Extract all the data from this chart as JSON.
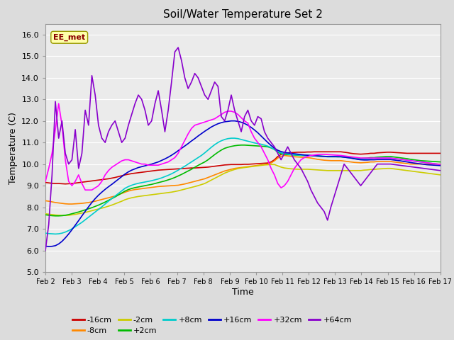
{
  "title": "Soil/Water Temperature Set 2",
  "xlabel": "Time",
  "ylabel": "Temperature (C)",
  "ylim": [
    5.0,
    16.5
  ],
  "yticks": [
    5.0,
    6.0,
    7.0,
    8.0,
    9.0,
    10.0,
    11.0,
    12.0,
    13.0,
    14.0,
    15.0,
    16.0
  ],
  "bg_color": "#dcdcdc",
  "plot_bg": "#ebebeb",
  "watermark": "EE_met",
  "series_order": [
    "-16cm",
    "-8cm",
    "-2cm",
    "+2cm",
    "+8cm",
    "+16cm",
    "+32cm",
    "+64cm"
  ],
  "series": {
    "-16cm": {
      "color": "#cc0000",
      "data": [
        9.15,
        9.13,
        9.11,
        9.1,
        9.1,
        9.09,
        9.08,
        9.09,
        9.1,
        9.12,
        9.14,
        9.16,
        9.18,
        9.2,
        9.22,
        9.24,
        9.26,
        9.28,
        9.3,
        9.32,
        9.35,
        9.38,
        9.42,
        9.46,
        9.5,
        9.53,
        9.56,
        9.58,
        9.6,
        9.62,
        9.64,
        9.66,
        9.68,
        9.7,
        9.72,
        9.73,
        9.74,
        9.75,
        9.76,
        9.77,
        9.78,
        9.79,
        9.8,
        9.81,
        9.82,
        9.82,
        9.83,
        9.84,
        9.85,
        9.86,
        9.88,
        9.9,
        9.92,
        9.94,
        9.96,
        9.97,
        9.98,
        9.98,
        9.98,
        9.98,
        9.99,
        9.99,
        10.0,
        10.01,
        10.02,
        10.03,
        10.04,
        10.05,
        10.1,
        10.2,
        10.35,
        10.45,
        10.5,
        10.52,
        10.53,
        10.54,
        10.55,
        10.55,
        10.55,
        10.56,
        10.56,
        10.57,
        10.57,
        10.57,
        10.57,
        10.57,
        10.57,
        10.57,
        10.57,
        10.57,
        10.55,
        10.53,
        10.5,
        10.48,
        10.47,
        10.46,
        10.47,
        10.48,
        10.5,
        10.5,
        10.52,
        10.53,
        10.54,
        10.55,
        10.55,
        10.54,
        10.53,
        10.52,
        10.51,
        10.5,
        10.5,
        10.5,
        10.5,
        10.5,
        10.5,
        10.5,
        10.5,
        10.5,
        10.5,
        10.5
      ]
    },
    "-8cm": {
      "color": "#ff8800",
      "data": [
        8.3,
        8.28,
        8.25,
        8.22,
        8.2,
        8.18,
        8.16,
        8.15,
        8.15,
        8.16,
        8.17,
        8.18,
        8.2,
        8.22,
        8.25,
        8.28,
        8.32,
        8.36,
        8.4,
        8.44,
        8.48,
        8.52,
        8.58,
        8.64,
        8.7,
        8.75,
        8.79,
        8.82,
        8.84,
        8.86,
        8.88,
        8.9,
        8.92,
        8.94,
        8.96,
        8.97,
        8.98,
        8.99,
        9.0,
        9.01,
        9.02,
        9.05,
        9.08,
        9.12,
        9.16,
        9.2,
        9.24,
        9.28,
        9.32,
        9.38,
        9.44,
        9.5,
        9.56,
        9.62,
        9.68,
        9.72,
        9.76,
        9.8,
        9.82,
        9.84,
        9.86,
        9.88,
        9.9,
        9.92,
        9.94,
        9.96,
        9.98,
        10.0,
        10.05,
        10.15,
        10.28,
        10.36,
        10.4,
        10.38,
        10.36,
        10.34,
        10.33,
        10.32,
        10.31,
        10.3,
        10.28,
        10.25,
        10.22,
        10.2,
        10.18,
        10.17,
        10.16,
        10.16,
        10.16,
        10.16,
        10.14,
        10.12,
        10.1,
        10.08,
        10.07,
        10.06,
        10.07,
        10.08,
        10.1,
        10.1,
        10.12,
        10.12,
        10.12,
        10.12,
        10.12,
        10.1,
        10.08,
        10.06,
        10.04,
        10.02,
        10.0,
        10.0,
        10.0,
        10.0,
        10.0,
        10.0,
        10.0,
        10.0,
        10.0,
        10.0
      ]
    },
    "-2cm": {
      "color": "#cccc00",
      "data": [
        7.7,
        7.68,
        7.66,
        7.64,
        7.63,
        7.62,
        7.62,
        7.63,
        7.65,
        7.67,
        7.7,
        7.73,
        7.76,
        7.8,
        7.84,
        7.88,
        7.92,
        7.96,
        8.0,
        8.05,
        8.1,
        8.16,
        8.22,
        8.28,
        8.35,
        8.4,
        8.44,
        8.47,
        8.5,
        8.52,
        8.54,
        8.56,
        8.58,
        8.6,
        8.62,
        8.64,
        8.66,
        8.68,
        8.7,
        8.73,
        8.76,
        8.8,
        8.84,
        8.88,
        8.92,
        8.96,
        9.0,
        9.05,
        9.1,
        9.18,
        9.26,
        9.34,
        9.42,
        9.5,
        9.58,
        9.64,
        9.7,
        9.75,
        9.79,
        9.82,
        9.84,
        9.86,
        9.88,
        9.9,
        9.92,
        9.94,
        9.96,
        9.97,
        9.98,
        9.98,
        9.92,
        9.86,
        9.82,
        9.8,
        9.78,
        9.77,
        9.76,
        9.76,
        9.76,
        9.76,
        9.75,
        9.74,
        9.73,
        9.72,
        9.71,
        9.7,
        9.7,
        9.7,
        9.7,
        9.7,
        9.7,
        9.7,
        9.7,
        9.7,
        9.7,
        9.7,
        9.72,
        9.73,
        9.75,
        9.75,
        9.77,
        9.78,
        9.79,
        9.8,
        9.8,
        9.78,
        9.76,
        9.74,
        9.72,
        9.7,
        9.68,
        9.66,
        9.64,
        9.62,
        9.6,
        9.58,
        9.56,
        9.54,
        9.52,
        9.5
      ]
    },
    "+2cm": {
      "color": "#00bb00",
      "data": [
        7.65,
        7.63,
        7.61,
        7.6,
        7.6,
        7.61,
        7.63,
        7.66,
        7.7,
        7.74,
        7.78,
        7.83,
        7.88,
        7.93,
        7.98,
        8.04,
        8.1,
        8.17,
        8.24,
        8.32,
        8.4,
        8.48,
        8.57,
        8.66,
        8.75,
        8.82,
        8.87,
        8.91,
        8.94,
        8.97,
        9.0,
        9.03,
        9.06,
        9.1,
        9.14,
        9.18,
        9.22,
        9.27,
        9.32,
        9.38,
        9.45,
        9.52,
        9.6,
        9.68,
        9.76,
        9.85,
        9.94,
        10.02,
        10.1,
        10.2,
        10.32,
        10.44,
        10.55,
        10.65,
        10.73,
        10.78,
        10.82,
        10.85,
        10.87,
        10.88,
        10.88,
        10.87,
        10.86,
        10.85,
        10.84,
        10.83,
        10.82,
        10.8,
        10.75,
        10.68,
        10.55,
        10.48,
        10.45,
        10.44,
        10.43,
        10.42,
        10.41,
        10.4,
        10.4,
        10.4,
        10.39,
        10.38,
        10.37,
        10.36,
        10.35,
        10.34,
        10.34,
        10.34,
        10.34,
        10.34,
        10.33,
        10.32,
        10.3,
        10.28,
        10.27,
        10.26,
        10.27,
        10.28,
        10.3,
        10.3,
        10.32,
        10.33,
        10.34,
        10.35,
        10.35,
        10.33,
        10.31,
        10.29,
        10.27,
        10.25,
        10.22,
        10.2,
        10.18,
        10.16,
        10.15,
        10.14,
        10.13,
        10.12,
        10.11,
        10.1
      ]
    },
    "+8cm": {
      "color": "#00cccc",
      "data": [
        6.8,
        6.78,
        6.77,
        6.76,
        6.77,
        6.8,
        6.85,
        6.92,
        7.0,
        7.1,
        7.2,
        7.3,
        7.42,
        7.54,
        7.66,
        7.78,
        7.9,
        8.02,
        8.15,
        8.28,
        8.4,
        8.52,
        8.64,
        8.76,
        8.88,
        8.96,
        9.02,
        9.07,
        9.11,
        9.14,
        9.17,
        9.2,
        9.23,
        9.27,
        9.31,
        9.36,
        9.42,
        9.48,
        9.55,
        9.63,
        9.72,
        9.81,
        9.9,
        10.0,
        10.1,
        10.2,
        10.3,
        10.4,
        10.52,
        10.65,
        10.78,
        10.9,
        11.0,
        11.08,
        11.14,
        11.18,
        11.2,
        11.2,
        11.18,
        11.14,
        11.1,
        11.06,
        11.02,
        10.98,
        10.95,
        10.92,
        10.88,
        10.83,
        10.76,
        10.68,
        10.58,
        10.52,
        10.48,
        10.46,
        10.44,
        10.43,
        10.42,
        10.41,
        10.4,
        10.4,
        10.39,
        10.38,
        10.37,
        10.36,
        10.35,
        10.34,
        10.34,
        10.34,
        10.34,
        10.34,
        10.32,
        10.3,
        10.28,
        10.26,
        10.24,
        10.23,
        10.24,
        10.25,
        10.26,
        10.27,
        10.28,
        10.28,
        10.28,
        10.28,
        10.28,
        10.26,
        10.24,
        10.22,
        10.2,
        10.18,
        10.16,
        10.14,
        10.12,
        10.1,
        10.08,
        10.06,
        10.04,
        10.02,
        10.0,
        9.98
      ]
    },
    "+16cm": {
      "color": "#0000cc",
      "data": [
        6.2,
        6.18,
        6.19,
        6.22,
        6.3,
        6.42,
        6.58,
        6.76,
        6.96,
        7.17,
        7.38,
        7.6,
        7.81,
        8.02,
        8.22,
        8.4,
        8.56,
        8.7,
        8.83,
        8.95,
        9.06,
        9.18,
        9.3,
        9.42,
        9.54,
        9.64,
        9.72,
        9.78,
        9.84,
        9.88,
        9.92,
        9.96,
        10.0,
        10.05,
        10.1,
        10.17,
        10.24,
        10.32,
        10.41,
        10.51,
        10.62,
        10.73,
        10.84,
        10.95,
        11.07,
        11.18,
        11.3,
        11.41,
        11.52,
        11.62,
        11.72,
        11.8,
        11.87,
        11.92,
        11.96,
        11.98,
        12.0,
        12.0,
        11.98,
        11.94,
        11.88,
        11.8,
        11.7,
        11.58,
        11.45,
        11.3,
        11.15,
        11.0,
        10.86,
        10.74,
        10.64,
        10.58,
        10.54,
        10.52,
        10.5,
        10.48,
        10.46,
        10.44,
        10.42,
        10.41,
        10.4,
        10.39,
        10.38,
        10.37,
        10.36,
        10.35,
        10.35,
        10.35,
        10.34,
        10.34,
        10.32,
        10.3,
        10.28,
        10.25,
        10.22,
        10.2,
        10.19,
        10.19,
        10.2,
        10.2,
        10.21,
        10.21,
        10.21,
        10.21,
        10.21,
        10.19,
        10.17,
        10.15,
        10.12,
        10.1,
        10.07,
        10.05,
        10.03,
        10.01,
        9.99,
        9.97,
        9.96,
        9.95,
        9.94,
        9.93
      ]
    },
    "+32cm": {
      "color": "#ff00ff",
      "data": [
        9.2,
        9.8,
        10.5,
        11.6,
        12.8,
        11.8,
        10.2,
        9.2,
        9.0,
        9.2,
        9.5,
        9.1,
        8.8,
        8.8,
        8.8,
        8.9,
        9.0,
        9.2,
        9.5,
        9.7,
        9.85,
        9.95,
        10.05,
        10.15,
        10.2,
        10.2,
        10.15,
        10.1,
        10.05,
        10.0,
        10.0,
        9.95,
        9.95,
        9.95,
        9.95,
        10.0,
        10.05,
        10.1,
        10.2,
        10.3,
        10.5,
        10.8,
        11.1,
        11.4,
        11.65,
        11.8,
        11.85,
        11.9,
        11.95,
        12.0,
        12.05,
        12.1,
        12.2,
        12.3,
        12.4,
        12.45,
        12.45,
        12.4,
        12.3,
        12.15,
        12.0,
        11.9,
        11.5,
        11.2,
        11.0,
        10.8,
        10.5,
        10.2,
        9.8,
        9.5,
        9.1,
        8.9,
        9.0,
        9.2,
        9.5,
        9.8,
        10.0,
        10.2,
        10.3,
        10.35,
        10.4,
        10.42,
        10.44,
        10.45,
        10.45,
        10.44,
        10.43,
        10.42,
        10.41,
        10.4,
        10.38,
        10.36,
        10.34,
        10.32,
        10.3,
        10.28,
        10.28,
        10.28,
        10.28,
        10.28,
        10.28,
        10.28,
        10.28,
        10.28,
        10.28,
        10.26,
        10.24,
        10.22,
        10.2,
        10.18,
        10.16,
        10.14,
        10.12,
        10.1,
        10.08,
        10.06,
        10.04,
        10.02,
        10.0,
        9.98
      ]
    },
    "+64cm": {
      "color": "#8800cc",
      "data": [
        6.0,
        7.2,
        9.5,
        12.9,
        11.2,
        12.0,
        10.5,
        10.0,
        10.2,
        11.6,
        9.8,
        10.5,
        12.5,
        11.8,
        14.1,
        13.2,
        11.8,
        11.2,
        11.0,
        11.5,
        11.8,
        12.0,
        11.5,
        11.0,
        11.2,
        11.8,
        12.3,
        12.8,
        13.2,
        13.0,
        12.5,
        11.8,
        12.0,
        12.8,
        13.4,
        12.5,
        11.5,
        12.5,
        13.8,
        15.2,
        15.4,
        14.8,
        14.0,
        13.5,
        13.8,
        14.2,
        14.0,
        13.6,
        13.2,
        13.0,
        13.4,
        13.8,
        13.6,
        12.2,
        12.0,
        12.5,
        13.2,
        12.5,
        12.0,
        11.5,
        12.2,
        12.5,
        12.0,
        11.8,
        12.2,
        12.1,
        11.5,
        11.2,
        11.0,
        10.8,
        10.5,
        10.2,
        10.5,
        10.8,
        10.5,
        10.2,
        10.0,
        9.8,
        9.5,
        9.2,
        8.8,
        8.5,
        8.2,
        8.0,
        7.8,
        7.4,
        8.0,
        8.5,
        9.0,
        9.5,
        10.0,
        9.8,
        9.6,
        9.4,
        9.2,
        9.0,
        9.2,
        9.4,
        9.6,
        9.8,
        10.0,
        10.0,
        10.0,
        10.0,
        10.0,
        9.98,
        9.96,
        9.94,
        9.92,
        9.9,
        9.88,
        9.86,
        9.84,
        9.82,
        9.8,
        9.78,
        9.76,
        9.74,
        9.72,
        9.7
      ]
    }
  },
  "xtick_labels": [
    "Feb 2",
    "Feb 3",
    "Feb 4",
    "Feb 5",
    "Feb 6",
    "Feb 7",
    "Feb 8",
    "Feb 9",
    "Feb 10",
    "Feb 11",
    "Feb 12",
    "Feb 13",
    "Feb 14",
    "Feb 15",
    "Feb 16",
    "Feb 17"
  ],
  "legend_row1": [
    "-16cm",
    "-8cm",
    "-2cm",
    "+2cm",
    "+8cm",
    "+16cm"
  ],
  "legend_row2": [
    "+32cm",
    "+64cm"
  ]
}
